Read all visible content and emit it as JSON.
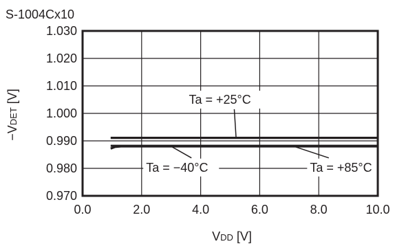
{
  "chart_data": {
    "type": "line",
    "title": "S-1004Cx10",
    "xlabel": {
      "main": "V",
      "sub": "DD",
      "unit": " [V]"
    },
    "ylabel": {
      "prefix": "−V",
      "sub": "DET",
      "unit": " [V]"
    },
    "xlim": [
      0,
      10
    ],
    "ylim": [
      0.97,
      1.03
    ],
    "xticks": [
      0,
      2,
      4,
      6,
      8,
      10
    ],
    "xtick_labels": [
      "0.0",
      "2.0",
      "4.0",
      "6.0",
      "8.0",
      "10.0"
    ],
    "yticks": [
      0.97,
      0.98,
      0.99,
      1.0,
      1.01,
      1.02,
      1.03
    ],
    "ytick_labels": [
      "0.970",
      "0.980",
      "0.990",
      "1.000",
      "1.010",
      "1.020",
      "1.030"
    ],
    "grid": true,
    "series": [
      {
        "name": "Ta = +25°C",
        "x": [
          0.95,
          10.0
        ],
        "y": [
          0.9911,
          0.9911
        ]
      },
      {
        "name": "Ta = −40°C",
        "x": [
          0.95,
          1.1,
          1.3,
          10.0
        ],
        "y": [
          0.9872,
          0.9878,
          0.988,
          0.988
        ]
      },
      {
        "name": "Ta = +85°C",
        "x": [
          0.95,
          10.0
        ],
        "y": [
          0.9882,
          0.9882
        ]
      }
    ],
    "annotations": [
      {
        "text": "Ta = +25°C",
        "series": 0,
        "x": 3.6,
        "y": 1.0035,
        "pointer_to": [
          5.2,
          0.9911
        ]
      },
      {
        "text": "Ta = −40°C",
        "series": 1,
        "x": 2.15,
        "y": 0.9788,
        "pointer_to": [
          3.0,
          0.988
        ]
      },
      {
        "text": "Ta = +85°C",
        "series": 2,
        "x": 7.7,
        "y": 0.9788,
        "pointer_to": [
          7.1,
          0.9882
        ]
      }
    ]
  }
}
